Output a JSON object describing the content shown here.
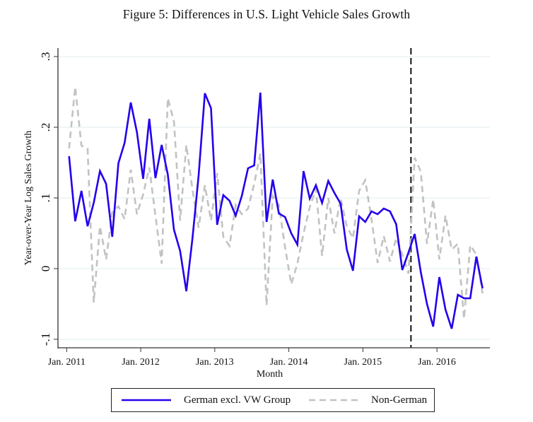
{
  "figure_title": "Figure 5: Differences in U.S. Light Vehicle Sales Growth",
  "colors": {
    "german": "#2200ee",
    "non_german": "#c2c2c2",
    "gridline": "#e8f0f2",
    "axis": "#333333",
    "event_line": "#111111"
  },
  "chart_data": {
    "type": "line",
    "title": "Figure 5: Differences in U.S. Light Vehicle Sales Growth",
    "xlabel": "Month",
    "ylabel": "Year-over-Year Log Sales Growth",
    "x_start": "Jan. 2011",
    "x_unit": "months since Jan. 2011",
    "x": [
      0,
      1,
      2,
      3,
      4,
      5,
      6,
      7,
      8,
      9,
      10,
      11,
      12,
      13,
      14,
      15,
      16,
      17,
      18,
      19,
      20,
      21,
      22,
      23,
      24,
      25,
      26,
      27,
      28,
      29,
      30,
      31,
      32,
      33,
      34,
      35,
      36,
      37,
      38,
      39,
      40,
      41,
      42,
      43,
      44,
      45,
      46,
      47,
      48,
      49,
      50,
      51,
      52,
      53,
      54,
      55,
      56,
      57,
      58,
      59,
      60,
      61,
      62,
      63,
      64,
      65,
      66,
      67
    ],
    "xticks": [
      {
        "value": 0,
        "label": "Jan. 2011"
      },
      {
        "value": 12,
        "label": "Jan. 2012"
      },
      {
        "value": 24,
        "label": "Jan. 2013"
      },
      {
        "value": 36,
        "label": "Jan. 2014"
      },
      {
        "value": 48,
        "label": "Jan. 2015"
      },
      {
        "value": 60,
        "label": "Jan. 2016"
      }
    ],
    "xlim": [
      -0.4,
      68.8
    ],
    "yticks": [
      {
        "value": 0.3,
        "label": ".3"
      },
      {
        "value": 0.2,
        "label": ".2"
      },
      {
        "value": 0.1,
        "label": ".1"
      },
      {
        "value": 0,
        "label": "0"
      },
      {
        "value": -0.1,
        "label": "-.1"
      }
    ],
    "ylim": [
      -0.112,
      0.312
    ],
    "grid": true,
    "event_line_x": 55.4,
    "legend_position": "bottom",
    "series": [
      {
        "name": "German excl. VW Group",
        "style": "solid",
        "values": [
          0.159,
          0.067,
          0.11,
          0.06,
          0.093,
          0.138,
          0.12,
          0.045,
          0.149,
          0.178,
          0.235,
          0.193,
          0.127,
          0.212,
          0.128,
          0.175,
          0.133,
          0.055,
          0.025,
          -0.032,
          0.043,
          0.132,
          0.248,
          0.227,
          0.062,
          0.104,
          0.096,
          0.075,
          0.103,
          0.142,
          0.146,
          0.249,
          0.066,
          0.126,
          0.078,
          0.073,
          0.05,
          0.034,
          0.138,
          0.099,
          0.118,
          0.093,
          0.124,
          0.107,
          0.092,
          0.027,
          -0.003,
          0.074,
          0.066,
          0.081,
          0.077,
          0.085,
          0.081,
          0.063,
          -0.002,
          0.023,
          0.049,
          -0.005,
          -0.05,
          -0.082,
          -0.012,
          -0.058,
          -0.085,
          -0.037,
          -0.042,
          -0.042,
          0.017,
          -0.028
        ]
      },
      {
        "name": "Non-German",
        "style": "dashed",
        "values": [
          0.17,
          0.257,
          0.174,
          0.17,
          -0.048,
          0.06,
          0.013,
          0.08,
          0.088,
          0.07,
          0.14,
          0.077,
          0.105,
          0.143,
          0.075,
          0.007,
          0.241,
          0.208,
          0.068,
          0.175,
          0.112,
          0.058,
          0.118,
          0.068,
          0.135,
          0.045,
          0.032,
          0.09,
          0.077,
          0.085,
          0.12,
          0.163,
          -0.052,
          0.103,
          0.09,
          0.03,
          -0.022,
          0.007,
          0.05,
          0.087,
          0.113,
          0.018,
          0.1,
          0.05,
          0.1,
          0.06,
          0.043,
          0.11,
          0.125,
          0.07,
          0.008,
          0.046,
          0.01,
          0.043,
          0.02,
          -0.007,
          0.157,
          0.137,
          0.035,
          0.098,
          0.013,
          0.075,
          0.027,
          0.035,
          -0.071,
          0.033,
          0.02,
          -0.035
        ]
      }
    ]
  },
  "legend": {
    "items": [
      {
        "label": "German excl. VW Group"
      },
      {
        "label": "Non-German"
      }
    ]
  }
}
